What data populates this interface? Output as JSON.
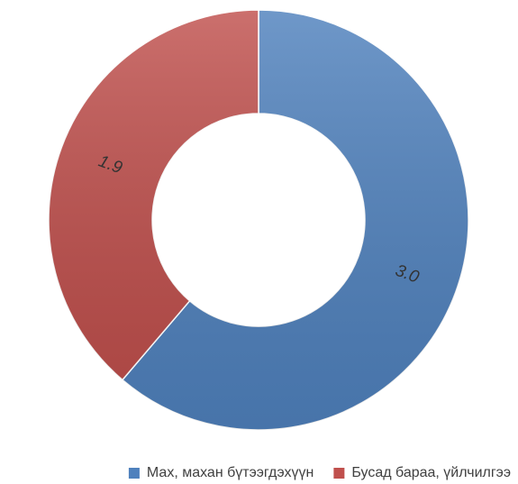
{
  "chart_data": {
    "type": "donut",
    "categories": [
      "Мах, махан бүтээгдэхүүн",
      "Бусад бараа, үйлчилгээ"
    ],
    "values": [
      3.0,
      1.9
    ],
    "value_labels": [
      "3.0",
      "1.9"
    ],
    "colors": [
      "#4f81bd",
      "#c0504d"
    ],
    "legend": "bottom"
  }
}
